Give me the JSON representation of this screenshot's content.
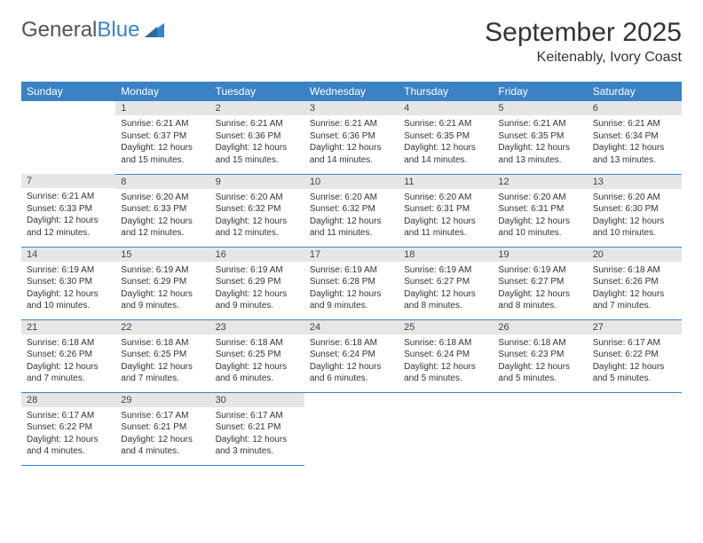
{
  "brand": {
    "part1": "General",
    "part2": "Blue"
  },
  "title": "September 2025",
  "location": "Keitenably, Ivory Coast",
  "dayHeaders": [
    "Sunday",
    "Monday",
    "Tuesday",
    "Wednesday",
    "Thursday",
    "Friday",
    "Saturday"
  ],
  "colors": {
    "header_bg": "#3b82c4",
    "header_text": "#ffffff",
    "daynum_bg": "#e6e6e6",
    "border": "#3b82c4",
    "text": "#333333"
  },
  "font": {
    "family": "Arial",
    "daynum_size": 11,
    "body_size": 10,
    "header_size": 12,
    "title_size": 30,
    "location_size": 16
  },
  "weeks": [
    [
      null,
      {
        "n": "1",
        "sunrise": "Sunrise: 6:21 AM",
        "sunset": "Sunset: 6:37 PM",
        "daylight": "Daylight: 12 hours and 15 minutes."
      },
      {
        "n": "2",
        "sunrise": "Sunrise: 6:21 AM",
        "sunset": "Sunset: 6:36 PM",
        "daylight": "Daylight: 12 hours and 15 minutes."
      },
      {
        "n": "3",
        "sunrise": "Sunrise: 6:21 AM",
        "sunset": "Sunset: 6:36 PM",
        "daylight": "Daylight: 12 hours and 14 minutes."
      },
      {
        "n": "4",
        "sunrise": "Sunrise: 6:21 AM",
        "sunset": "Sunset: 6:35 PM",
        "daylight": "Daylight: 12 hours and 14 minutes."
      },
      {
        "n": "5",
        "sunrise": "Sunrise: 6:21 AM",
        "sunset": "Sunset: 6:35 PM",
        "daylight": "Daylight: 12 hours and 13 minutes."
      },
      {
        "n": "6",
        "sunrise": "Sunrise: 6:21 AM",
        "sunset": "Sunset: 6:34 PM",
        "daylight": "Daylight: 12 hours and 13 minutes."
      }
    ],
    [
      {
        "n": "7",
        "sunrise": "Sunrise: 6:21 AM",
        "sunset": "Sunset: 6:33 PM",
        "daylight": "Daylight: 12 hours and 12 minutes."
      },
      {
        "n": "8",
        "sunrise": "Sunrise: 6:20 AM",
        "sunset": "Sunset: 6:33 PM",
        "daylight": "Daylight: 12 hours and 12 minutes."
      },
      {
        "n": "9",
        "sunrise": "Sunrise: 6:20 AM",
        "sunset": "Sunset: 6:32 PM",
        "daylight": "Daylight: 12 hours and 12 minutes."
      },
      {
        "n": "10",
        "sunrise": "Sunrise: 6:20 AM",
        "sunset": "Sunset: 6:32 PM",
        "daylight": "Daylight: 12 hours and 11 minutes."
      },
      {
        "n": "11",
        "sunrise": "Sunrise: 6:20 AM",
        "sunset": "Sunset: 6:31 PM",
        "daylight": "Daylight: 12 hours and 11 minutes."
      },
      {
        "n": "12",
        "sunrise": "Sunrise: 6:20 AM",
        "sunset": "Sunset: 6:31 PM",
        "daylight": "Daylight: 12 hours and 10 minutes."
      },
      {
        "n": "13",
        "sunrise": "Sunrise: 6:20 AM",
        "sunset": "Sunset: 6:30 PM",
        "daylight": "Daylight: 12 hours and 10 minutes."
      }
    ],
    [
      {
        "n": "14",
        "sunrise": "Sunrise: 6:19 AM",
        "sunset": "Sunset: 6:30 PM",
        "daylight": "Daylight: 12 hours and 10 minutes."
      },
      {
        "n": "15",
        "sunrise": "Sunrise: 6:19 AM",
        "sunset": "Sunset: 6:29 PM",
        "daylight": "Daylight: 12 hours and 9 minutes."
      },
      {
        "n": "16",
        "sunrise": "Sunrise: 6:19 AM",
        "sunset": "Sunset: 6:29 PM",
        "daylight": "Daylight: 12 hours and 9 minutes."
      },
      {
        "n": "17",
        "sunrise": "Sunrise: 6:19 AM",
        "sunset": "Sunset: 6:28 PM",
        "daylight": "Daylight: 12 hours and 9 minutes."
      },
      {
        "n": "18",
        "sunrise": "Sunrise: 6:19 AM",
        "sunset": "Sunset: 6:27 PM",
        "daylight": "Daylight: 12 hours and 8 minutes."
      },
      {
        "n": "19",
        "sunrise": "Sunrise: 6:19 AM",
        "sunset": "Sunset: 6:27 PM",
        "daylight": "Daylight: 12 hours and 8 minutes."
      },
      {
        "n": "20",
        "sunrise": "Sunrise: 6:18 AM",
        "sunset": "Sunset: 6:26 PM",
        "daylight": "Daylight: 12 hours and 7 minutes."
      }
    ],
    [
      {
        "n": "21",
        "sunrise": "Sunrise: 6:18 AM",
        "sunset": "Sunset: 6:26 PM",
        "daylight": "Daylight: 12 hours and 7 minutes."
      },
      {
        "n": "22",
        "sunrise": "Sunrise: 6:18 AM",
        "sunset": "Sunset: 6:25 PM",
        "daylight": "Daylight: 12 hours and 7 minutes."
      },
      {
        "n": "23",
        "sunrise": "Sunrise: 6:18 AM",
        "sunset": "Sunset: 6:25 PM",
        "daylight": "Daylight: 12 hours and 6 minutes."
      },
      {
        "n": "24",
        "sunrise": "Sunrise: 6:18 AM",
        "sunset": "Sunset: 6:24 PM",
        "daylight": "Daylight: 12 hours and 6 minutes."
      },
      {
        "n": "25",
        "sunrise": "Sunrise: 6:18 AM",
        "sunset": "Sunset: 6:24 PM",
        "daylight": "Daylight: 12 hours and 5 minutes."
      },
      {
        "n": "26",
        "sunrise": "Sunrise: 6:18 AM",
        "sunset": "Sunset: 6:23 PM",
        "daylight": "Daylight: 12 hours and 5 minutes."
      },
      {
        "n": "27",
        "sunrise": "Sunrise: 6:17 AM",
        "sunset": "Sunset: 6:22 PM",
        "daylight": "Daylight: 12 hours and 5 minutes."
      }
    ],
    [
      {
        "n": "28",
        "sunrise": "Sunrise: 6:17 AM",
        "sunset": "Sunset: 6:22 PM",
        "daylight": "Daylight: 12 hours and 4 minutes."
      },
      {
        "n": "29",
        "sunrise": "Sunrise: 6:17 AM",
        "sunset": "Sunset: 6:21 PM",
        "daylight": "Daylight: 12 hours and 4 minutes."
      },
      {
        "n": "30",
        "sunrise": "Sunrise: 6:17 AM",
        "sunset": "Sunset: 6:21 PM",
        "daylight": "Daylight: 12 hours and 3 minutes."
      },
      null,
      null,
      null,
      null
    ]
  ]
}
